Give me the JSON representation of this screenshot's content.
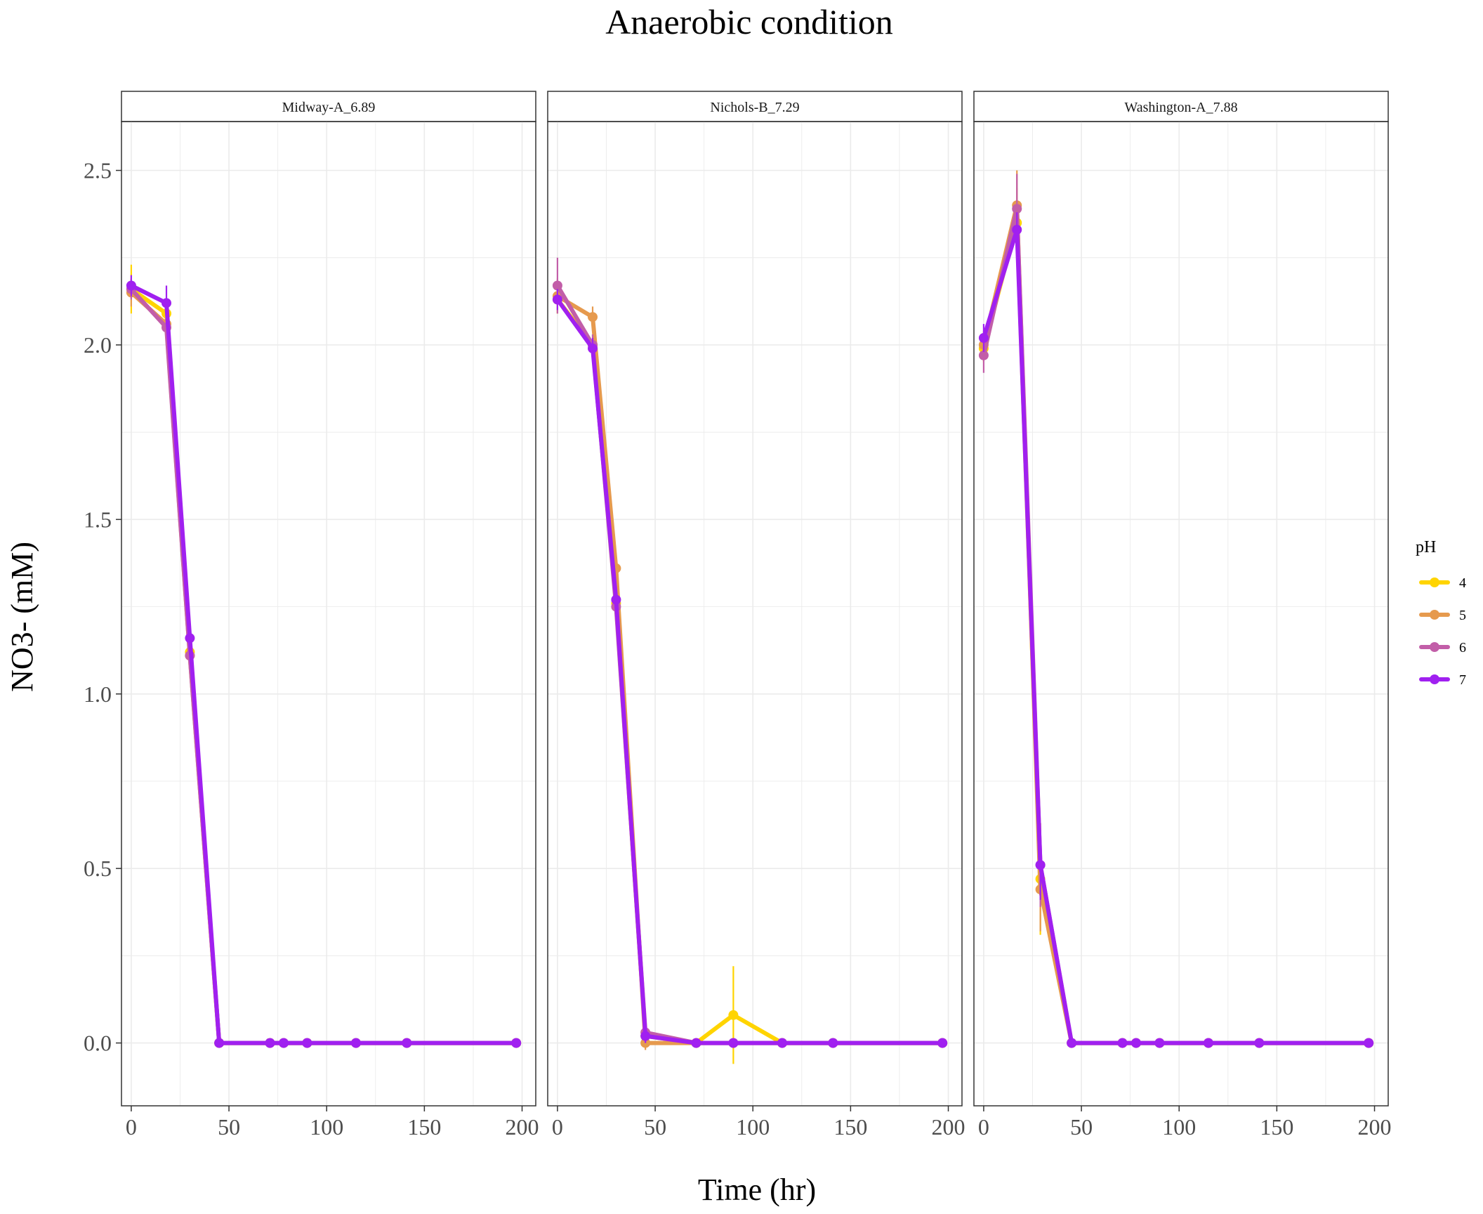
{
  "chart_data": {
    "type": "line",
    "title": "Anaerobic condition",
    "xlabel": "Time (hr)",
    "ylabel": "NO3- (mM)",
    "xlim": [
      -5,
      207
    ],
    "ylim": [
      -0.18,
      2.64
    ],
    "x_ticks": [
      "0",
      "50",
      "100",
      "150",
      "200"
    ],
    "y_ticks": [
      "0.0",
      "0.5",
      "1.0",
      "1.5",
      "2.0",
      "2.5"
    ],
    "grid": true,
    "legend": {
      "title": "pH",
      "placement": "right",
      "entries": [
        {
          "label": "4",
          "color": "#FFD400"
        },
        {
          "label": "5",
          "color": "#E69A4E"
        },
        {
          "label": "6",
          "color": "#C25EA8"
        },
        {
          "label": "7",
          "color": "#A020F0"
        }
      ]
    },
    "panels": [
      {
        "label": "Midway-A_6.89",
        "series": [
          {
            "name": "4",
            "color": "#FFD400",
            "x": [
              0,
              18,
              30,
              45,
              71,
              78,
              90,
              115,
              141,
              197
            ],
            "y": [
              2.16,
              2.09,
              1.12,
              0,
              0,
              0,
              0,
              0,
              0,
              0
            ],
            "err": [
              0.07,
              0.04,
              0.03,
              0,
              0,
              0,
              0,
              0,
              0,
              0
            ]
          },
          {
            "name": "5",
            "color": "#E69A4E",
            "x": [
              0,
              18,
              30,
              45,
              71,
              78,
              90,
              115,
              141,
              197
            ],
            "y": [
              2.15,
              2.06,
              1.11,
              0,
              0,
              0,
              0,
              0,
              0,
              0
            ],
            "err": [
              0.04,
              0.04,
              0.03,
              0,
              0,
              0,
              0,
              0,
              0,
              0
            ]
          },
          {
            "name": "6",
            "color": "#C25EA8",
            "x": [
              0,
              18,
              30,
              45,
              71,
              78,
              90,
              115,
              141,
              197
            ],
            "y": [
              2.16,
              2.05,
              1.11,
              0,
              0,
              0,
              0,
              0,
              0,
              0
            ],
            "err": [
              0.03,
              0.03,
              0.03,
              0,
              0,
              0,
              0,
              0,
              0,
              0
            ]
          },
          {
            "name": "7",
            "color": "#A020F0",
            "x": [
              0,
              18,
              30,
              45,
              71,
              78,
              90,
              115,
              141,
              197
            ],
            "y": [
              2.17,
              2.12,
              1.16,
              0,
              0,
              0,
              0,
              0,
              0,
              0
            ],
            "err": [
              0.03,
              0.05,
              0.03,
              0,
              0,
              0,
              0,
              0,
              0,
              0
            ]
          }
        ]
      },
      {
        "label": "Nichols-B_7.29",
        "series": [
          {
            "name": "4",
            "color": "#FFD400",
            "x": [
              0,
              18,
              30,
              45,
              71,
              90,
              115,
              141,
              197
            ],
            "y": [
              2.13,
              2.0,
              1.26,
              0.02,
              0,
              0.08,
              0,
              0,
              0
            ],
            "err": [
              0.04,
              0.03,
              0.04,
              0.02,
              0,
              0.14,
              0,
              0,
              0
            ]
          },
          {
            "name": "5",
            "color": "#E69A4E",
            "x": [
              0,
              18,
              30,
              45,
              71,
              90,
              115,
              141,
              197
            ],
            "y": [
              2.14,
              2.08,
              1.36,
              0.0,
              0,
              0,
              0,
              0,
              0
            ],
            "err": [
              0.05,
              0.03,
              0.04,
              0.02,
              0,
              0,
              0,
              0,
              0
            ]
          },
          {
            "name": "6",
            "color": "#C25EA8",
            "x": [
              0,
              18,
              30,
              45,
              71,
              90,
              115,
              141,
              197
            ],
            "y": [
              2.17,
              2.0,
              1.25,
              0.03,
              0,
              0,
              0,
              0,
              0
            ],
            "err": [
              0.08,
              0.03,
              0.03,
              0.03,
              0,
              0,
              0,
              0,
              0
            ]
          },
          {
            "name": "7",
            "color": "#A020F0",
            "x": [
              0,
              18,
              30,
              45,
              71,
              90,
              115,
              141,
              197
            ],
            "y": [
              2.13,
              1.99,
              1.27,
              0.02,
              0,
              0,
              0,
              0,
              0
            ],
            "err": [
              0.03,
              0.03,
              0.03,
              0.02,
              0,
              0,
              0,
              0,
              0
            ]
          }
        ]
      },
      {
        "label": "Washington-A_7.88",
        "series": [
          {
            "name": "4",
            "color": "#FFD400",
            "x": [
              0,
              17,
              29,
              45,
              71,
              78,
              90,
              115,
              141,
              197
            ],
            "y": [
              1.99,
              2.35,
              0.47,
              0,
              0,
              0,
              0,
              0,
              0,
              0
            ],
            "err": [
              0.04,
              0.1,
              0.16,
              0,
              0,
              0,
              0,
              0,
              0,
              0
            ]
          },
          {
            "name": "5",
            "color": "#E69A4E",
            "x": [
              0,
              17,
              29,
              45,
              71,
              78,
              90,
              115,
              141,
              197
            ],
            "y": [
              2.0,
              2.4,
              0.44,
              0,
              0,
              0,
              0,
              0,
              0,
              0
            ],
            "err": [
              0.04,
              0.1,
              0.12,
              0,
              0,
              0,
              0,
              0,
              0,
              0
            ]
          },
          {
            "name": "6",
            "color": "#C25EA8",
            "x": [
              0,
              17,
              29,
              45,
              71,
              78,
              90,
              115,
              141,
              197
            ],
            "y": [
              1.97,
              2.39,
              0.51,
              0,
              0,
              0,
              0,
              0,
              0,
              0
            ],
            "err": [
              0.05,
              0.1,
              0.12,
              0,
              0,
              0,
              0,
              0,
              0,
              0
            ]
          },
          {
            "name": "7",
            "color": "#A020F0",
            "x": [
              0,
              17,
              29,
              45,
              71,
              78,
              90,
              115,
              141,
              197
            ],
            "y": [
              2.02,
              2.33,
              0.51,
              0,
              0,
              0,
              0,
              0,
              0,
              0
            ],
            "err": [
              0.04,
              0.05,
              0.1,
              0,
              0,
              0,
              0,
              0,
              0,
              0
            ]
          }
        ]
      }
    ]
  }
}
